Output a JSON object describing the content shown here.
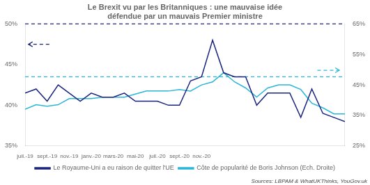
{
  "chart_data": {
    "type": "line",
    "title": "Le Brexit vu par les Britanniques : une mauvaise idée\ndéfendue par un mauvais Premier ministre",
    "annotations": [
      "Sources: LBPAM & WhatUKThinks, YouGov.uk"
    ],
    "x": [
      0,
      1,
      2,
      3,
      4,
      5,
      6,
      7,
      8,
      9,
      10,
      11,
      12,
      13,
      14,
      15,
      16,
      17,
      18,
      19,
      20,
      21,
      22,
      23,
      24,
      25,
      26,
      27,
      28,
      29
    ],
    "xlim": [
      0,
      29
    ],
    "xticks": [
      {
        "value": 0,
        "label": "juil.-19"
      },
      {
        "value": 2,
        "label": "sept.-19"
      },
      {
        "value": 4,
        "label": "nov.-19"
      },
      {
        "value": 6,
        "label": "janv.-20"
      },
      {
        "value": 8,
        "label": "mars-20"
      },
      {
        "value": 10,
        "label": "mai-20"
      },
      {
        "value": 12,
        "label": "juil.-20"
      },
      {
        "value": 14,
        "label": "sept.-20"
      },
      {
        "value": 16,
        "label": "nov.-20"
      }
    ],
    "ylim": [
      35,
      50
    ],
    "yticks": [
      {
        "value": 35,
        "label": "35%"
      },
      {
        "value": 40,
        "label": "40%"
      },
      {
        "value": 45,
        "label": "45%"
      },
      {
        "value": 50,
        "label": "50%"
      }
    ],
    "y2lim": [
      25,
      65
    ],
    "y2ticks": [
      {
        "value": 25,
        "label": "25%"
      },
      {
        "value": 35,
        "label": "35%"
      },
      {
        "value": 45,
        "label": "45%"
      },
      {
        "value": 55,
        "label": "55%"
      },
      {
        "value": 65,
        "label": "65%"
      }
    ],
    "series": [
      {
        "name": "Le Royaume-Uni a eu raison de quitter l'UE",
        "color": "#1a237e",
        "values": [
          41.5,
          42.0,
          40.5,
          42.5,
          41.5,
          40.5,
          41.5,
          41.0,
          41.0,
          41.5,
          40.5,
          40.5,
          40.5,
          40.0,
          40.0,
          43.0,
          43.5,
          48.0,
          44.0,
          43.5,
          43.5,
          40.0,
          41.5,
          41.5,
          41.5,
          38.5,
          42.0,
          39.0,
          38.5,
          38.0
        ]
      },
      {
        "name": "Côte de popularité de Boris Johnson (Ech. Droite)",
        "color": "#29b6d8",
        "axis": "y2",
        "values": [
          37.0,
          38.5,
          38.0,
          38.5,
          40.5,
          40.5,
          40.5,
          41.0,
          41.0,
          41.0,
          42.0,
          43.0,
          43.0,
          43.0,
          43.5,
          43.0,
          45.0,
          46.0,
          49.0,
          46.0,
          44.0,
          41.0,
          44.0,
          45.0,
          45.0,
          43.5,
          39.0,
          37.5,
          35.5,
          35.5
        ]
      }
    ],
    "reference_lines": [
      {
        "y": 50.0,
        "color": "#1a237e",
        "line_style": "dashed"
      },
      {
        "y": 43.5,
        "color": "#29b6d8",
        "line_style": "dashed"
      }
    ],
    "arrows": [
      {
        "x_from": 2.2,
        "x_to": 0.3,
        "y": 47.5,
        "color": "#1a237e",
        "line_style": "dashed"
      },
      {
        "x_from": 26.5,
        "x_to": 28.5,
        "y": 44.3,
        "color": "#29b6d8",
        "line_style": "dashed"
      }
    ],
    "grid": false,
    "legend": "bottom"
  }
}
